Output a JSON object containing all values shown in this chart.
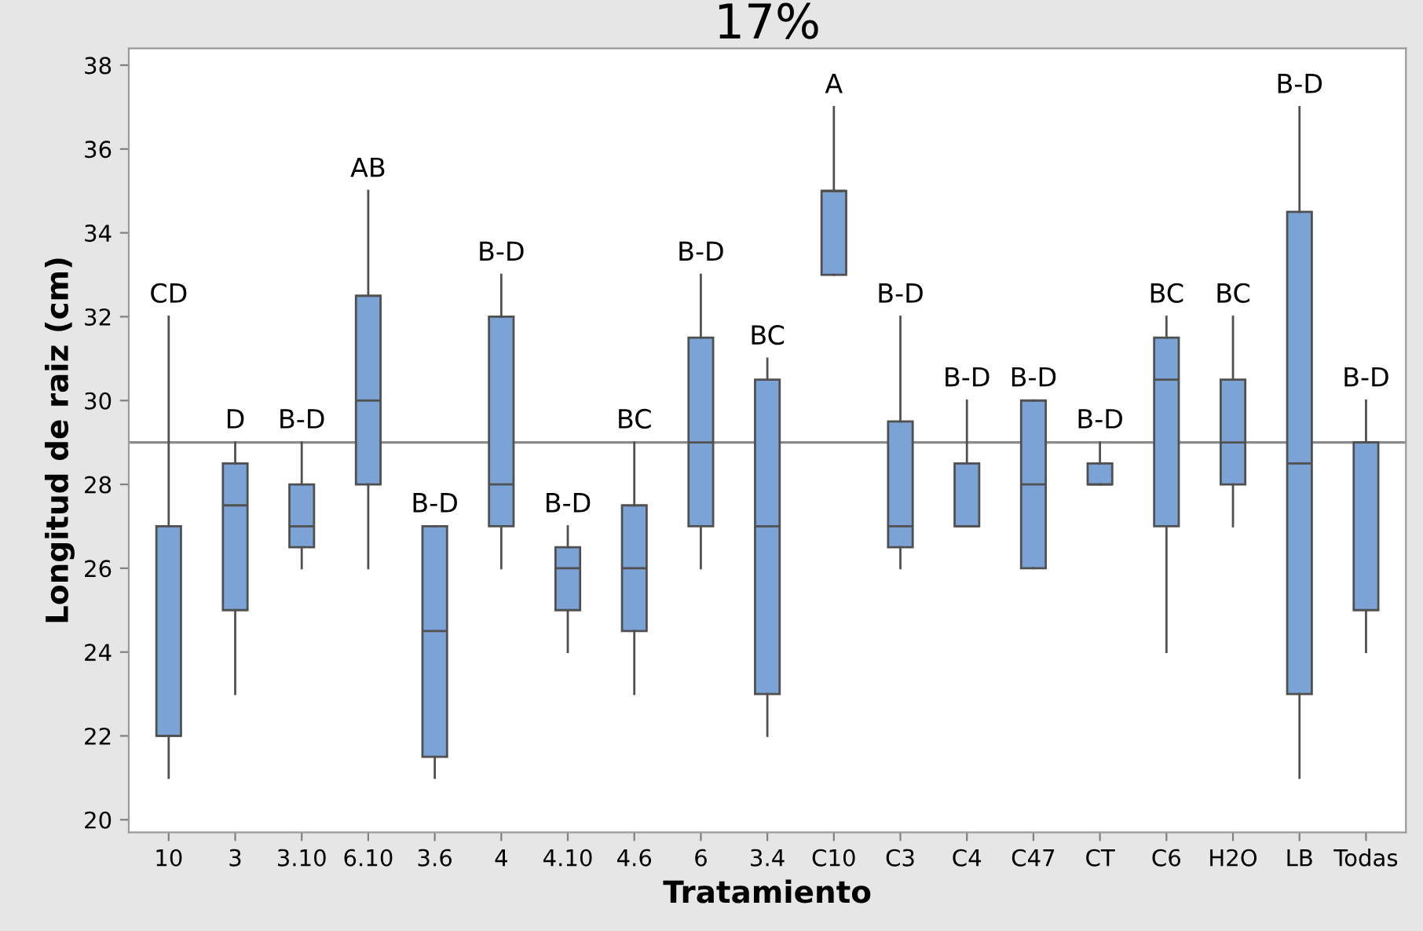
{
  "chart_data": {
    "type": "box",
    "title": "17%",
    "xlabel": "Tratamiento",
    "ylabel": "Longitud de raiz (cm)",
    "categories": [
      "10",
      "3",
      "3.10",
      "6.10",
      "3.6",
      "4",
      "4.10",
      "4.6",
      "6",
      "3.4",
      "C10",
      "C3",
      "C4",
      "C47",
      "CT",
      "C6",
      "H2O",
      "LB",
      "Todas"
    ],
    "boxes": [
      {
        "low": 21,
        "q1": 22,
        "median": 22,
        "q3": 27,
        "high": 32
      },
      {
        "low": 23,
        "q1": 25,
        "median": 27.5,
        "q3": 28.5,
        "high": 29
      },
      {
        "low": 26,
        "q1": 26.5,
        "median": 27,
        "q3": 28,
        "high": 29
      },
      {
        "low": 26,
        "q1": 28,
        "median": 30,
        "q3": 32.5,
        "high": 35
      },
      {
        "low": 21,
        "q1": 21.5,
        "median": 24.5,
        "q3": 27,
        "high": 27
      },
      {
        "low": 26,
        "q1": 27,
        "median": 28,
        "q3": 32,
        "high": 33
      },
      {
        "low": 24,
        "q1": 25,
        "median": 26,
        "q3": 26.5,
        "high": 27
      },
      {
        "low": 23,
        "q1": 24.5,
        "median": 26,
        "q3": 27.5,
        "high": 29
      },
      {
        "low": 26,
        "q1": 27,
        "median": 29,
        "q3": 31.5,
        "high": 33
      },
      {
        "low": 22,
        "q1": 23,
        "median": 27,
        "q3": 30.5,
        "high": 31
      },
      {
        "low": 33,
        "q1": 33,
        "median": 35,
        "q3": 35,
        "high": 37
      },
      {
        "low": 26,
        "q1": 26.5,
        "median": 27,
        "q3": 29.5,
        "high": 32
      },
      {
        "low": 27,
        "q1": 27,
        "median": 27,
        "q3": 28.5,
        "high": 30
      },
      {
        "low": 26,
        "q1": 26,
        "median": 28,
        "q3": 30,
        "high": 30
      },
      {
        "low": 28,
        "q1": 28,
        "median": 28,
        "q3": 28.5,
        "high": 29
      },
      {
        "low": 24,
        "q1": 27,
        "median": 30.5,
        "q3": 31.5,
        "high": 32
      },
      {
        "low": 27,
        "q1": 28,
        "median": 29,
        "q3": 30.5,
        "high": 32
      },
      {
        "low": 21,
        "q1": 23,
        "median": 28.5,
        "q3": 34.5,
        "high": 37
      },
      {
        "low": 24,
        "q1": 25,
        "median": 29,
        "q3": 29,
        "high": 30
      }
    ],
    "color": "#7ba3d6",
    "ylim": [
      19.7,
      38.4
    ],
    "yticks": [
      20,
      22,
      24,
      26,
      28,
      30,
      32,
      34,
      36,
      38
    ],
    "ref_lines": [
      {
        "axis": "y",
        "value": 29,
        "color": "#8c8c8c"
      }
    ],
    "annotations": [
      {
        "text": "CD",
        "x": "10",
        "y": 32
      },
      {
        "text": "D",
        "x": "3",
        "y": 29
      },
      {
        "text": "B-D",
        "x": "3.10",
        "y": 29
      },
      {
        "text": "AB",
        "x": "6.10",
        "y": 35
      },
      {
        "text": "B-D",
        "x": "3.6",
        "y": 27
      },
      {
        "text": "B-D",
        "x": "4",
        "y": 33
      },
      {
        "text": "B-D",
        "x": "4.10",
        "y": 27
      },
      {
        "text": "BC",
        "x": "4.6",
        "y": 29
      },
      {
        "text": "B-D",
        "x": "6",
        "y": 33
      },
      {
        "text": "BC",
        "x": "3.4",
        "y": 31
      },
      {
        "text": "A",
        "x": "C10",
        "y": 37
      },
      {
        "text": "B-D",
        "x": "C3",
        "y": 32
      },
      {
        "text": "B-D",
        "x": "C4",
        "y": 30
      },
      {
        "text": "B-D",
        "x": "C47",
        "y": 30
      },
      {
        "text": "B-D",
        "x": "CT",
        "y": 29
      },
      {
        "text": "BC",
        "x": "C6",
        "y": 32
      },
      {
        "text": "BC",
        "x": "H2O",
        "y": 32
      },
      {
        "text": "B-D",
        "x": "LB",
        "y": 37
      },
      {
        "text": "B-D",
        "x": "Todas",
        "y": 30
      }
    ],
    "grid": false,
    "legend": false
  }
}
